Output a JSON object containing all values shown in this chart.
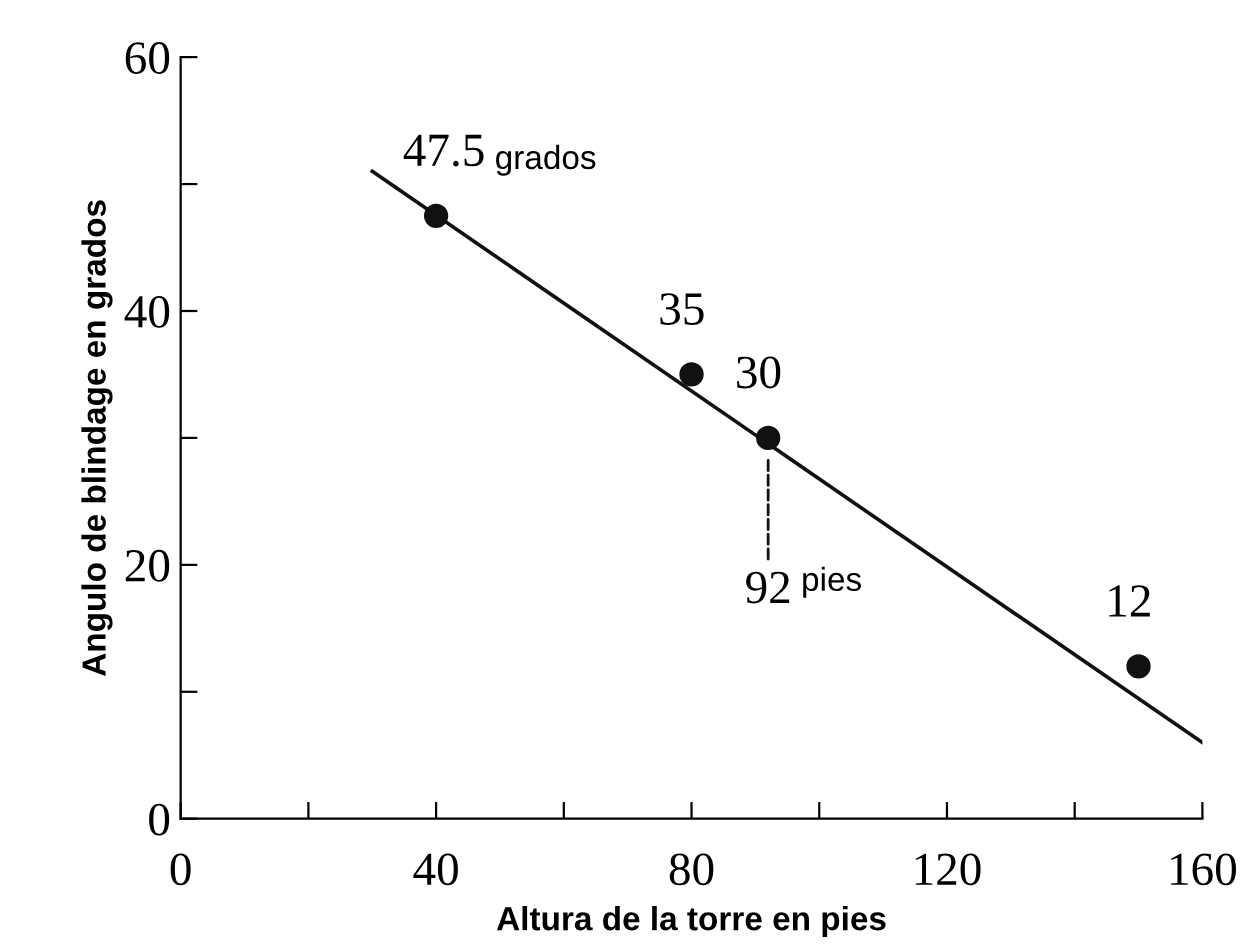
{
  "chart_data": {
    "type": "scatter",
    "xlabel": "Altura de la torre en pies",
    "ylabel": "Angulo de blindage en grados",
    "series": [
      {
        "color": "#111111",
        "x": [
          40,
          80,
          92,
          150
        ],
        "values": [
          47.5,
          35,
          30,
          12
        ],
        "value_labels": [
          "47.5 grados",
          "35",
          "30",
          "12"
        ],
        "marker": "circle"
      },
      {
        "type": "line",
        "color": "#111111",
        "x": [
          30,
          160
        ],
        "values": [
          51,
          6
        ],
        "line_style": "solid"
      }
    ],
    "annotations": [
      {
        "text": "92 pies",
        "x": 92,
        "y": 30
      }
    ],
    "xlim": [
      0,
      160
    ],
    "ylim": [
      0,
      60
    ],
    "xticks": [
      0,
      {
        "value": 20,
        "label": null
      },
      40,
      {
        "value": 60,
        "label": null
      },
      80,
      {
        "value": 100,
        "label": null
      },
      120,
      {
        "value": 140,
        "label": null
      },
      160
    ],
    "yticks": [
      0,
      {
        "value": 10,
        "label": null
      },
      20,
      {
        "value": 30,
        "label": null
      },
      40,
      {
        "value": 50,
        "label": null
      },
      60
    ],
    "grid": false,
    "legend": false
  }
}
